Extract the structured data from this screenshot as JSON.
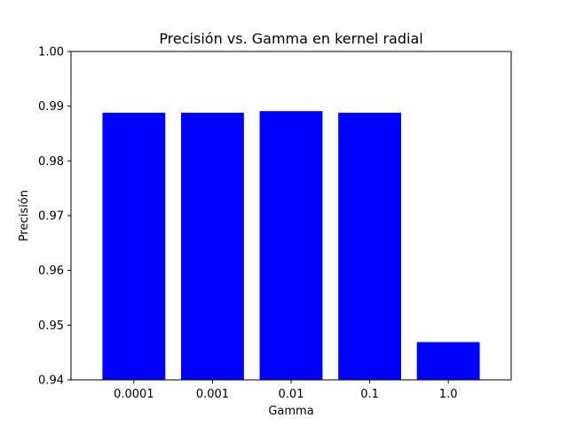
{
  "chart_data": {
    "type": "bar",
    "title": "Precisión vs. Gamma en kernel radial",
    "xlabel": "Gamma",
    "ylabel": "Precisión",
    "categories": [
      "0.0001",
      "0.001",
      "0.01",
      "0.1",
      "1.0"
    ],
    "values": [
      0.9888,
      0.9888,
      0.9891,
      0.9888,
      0.9469
    ],
    "ylim": [
      0.94,
      1.0
    ],
    "yticks": [
      "0.94",
      "0.95",
      "0.96",
      "0.97",
      "0.98",
      "0.99",
      "1.00"
    ],
    "bar_color": "#0000ff",
    "grid": false,
    "legend": "none"
  }
}
